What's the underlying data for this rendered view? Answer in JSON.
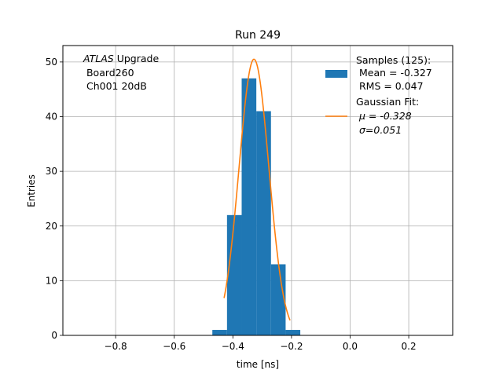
{
  "chart_data": {
    "type": "bar",
    "title": "Run 249",
    "xlabel": "time [ns]",
    "ylabel": "Entries",
    "xlim": [
      -0.98,
      0.35
    ],
    "ylim": [
      0,
      53
    ],
    "grid": true,
    "x_ticks": [
      -0.8,
      -0.6,
      -0.4,
      -0.2,
      0.0,
      0.2
    ],
    "x_tick_labels": [
      "−0.8",
      "−0.6",
      "−0.4",
      "−0.2",
      "0.0",
      "0.2"
    ],
    "y_ticks": [
      0,
      10,
      20,
      30,
      40,
      50
    ],
    "y_tick_labels": [
      "0",
      "10",
      "20",
      "30",
      "40",
      "50"
    ],
    "annotation": {
      "italic": "ATLAS",
      "line1_rest": " Upgrade",
      "line2": " Board260",
      "line3": " Ch001 20dB"
    },
    "series": [
      {
        "name": "Samples (125):",
        "kind": "histogram",
        "color": "#1f77b4",
        "bin_edges": [
          -0.47,
          -0.42,
          -0.37,
          -0.32,
          -0.27,
          -0.22,
          -0.17
        ],
        "values": [
          1,
          22,
          47,
          41,
          13,
          1
        ],
        "legend_lines": [
          "Samples (125):",
          " Mean = -0.327",
          " RMS = 0.047"
        ]
      },
      {
        "name": "Gaussian Fit:",
        "kind": "line",
        "color": "#ff7f0e",
        "mu": -0.328,
        "sigma": 0.051,
        "amplitude": 50.5,
        "x_range": [
          -0.43,
          -0.205
        ],
        "legend_lines": [
          "Gaussian Fit:",
          " μ = -0.328",
          " σ=0.051"
        ]
      }
    ],
    "legend_position": "top-right"
  }
}
